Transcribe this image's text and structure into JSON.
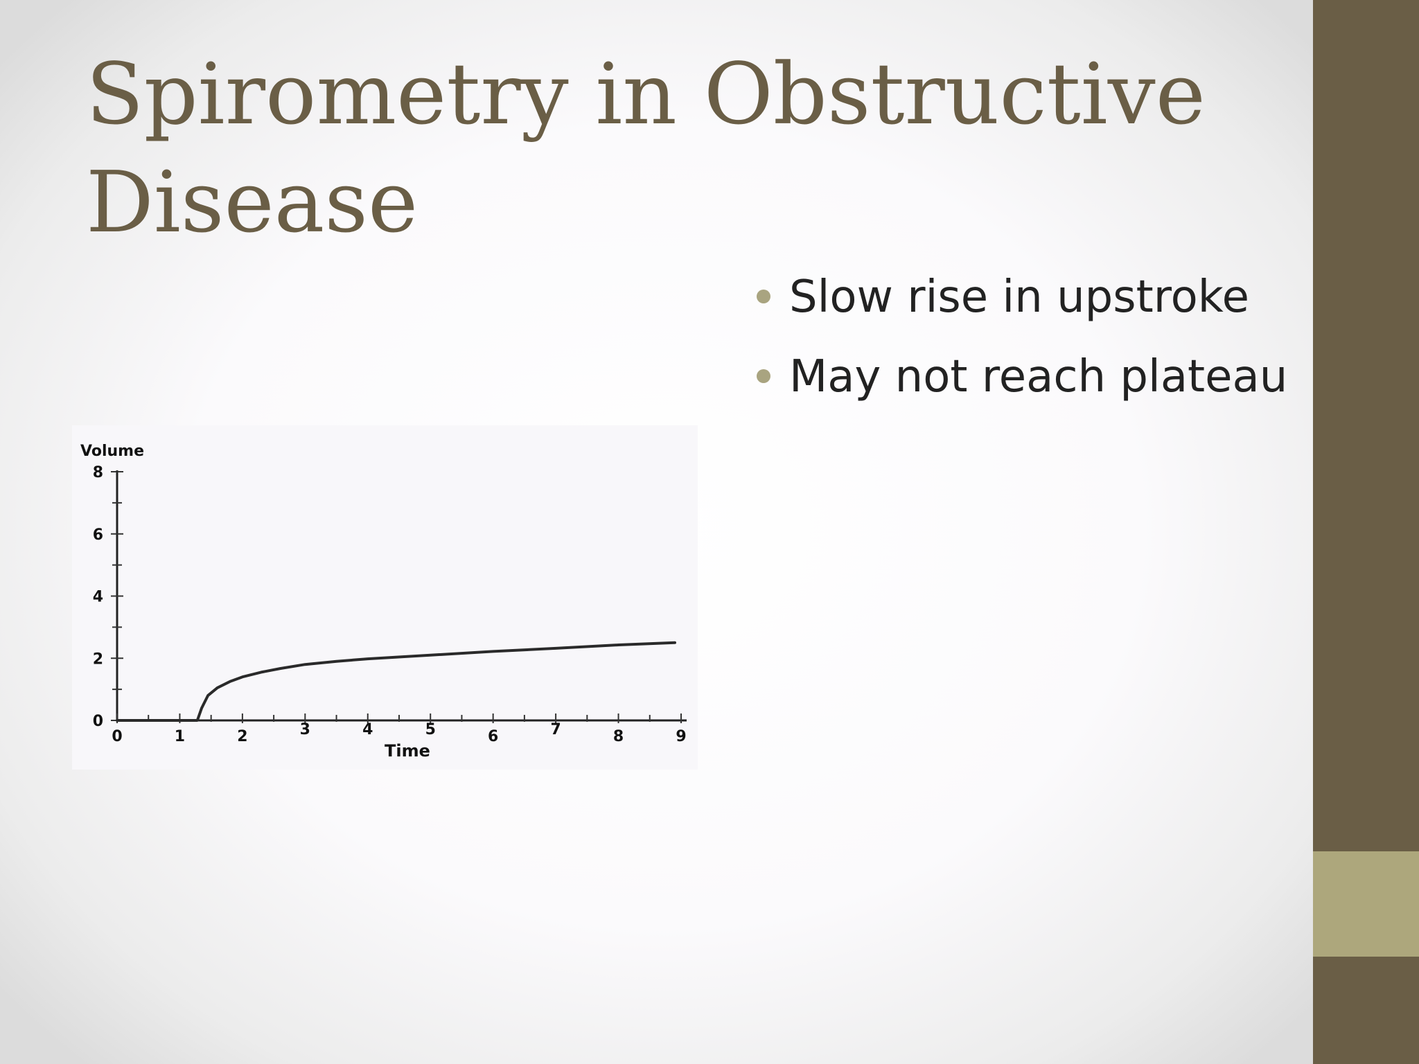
{
  "slide": {
    "title": "Spirometry in Obstructive Disease",
    "bullets": [
      "Slow rise in upstroke",
      "May not reach plateau"
    ]
  },
  "colors": {
    "title": "#6a5e46",
    "side_bar": "#6a5e46",
    "side_accent": "#ada77c",
    "bullet_dot": "#a9a480",
    "body_text": "#222222"
  },
  "chart_data": {
    "type": "line",
    "title": "",
    "xlabel": "Time",
    "ylabel": "Volume",
    "xlim": [
      0,
      9
    ],
    "ylim": [
      0,
      8
    ],
    "x_ticks": [
      0,
      1,
      2,
      3,
      4,
      5,
      6,
      7,
      8,
      9
    ],
    "y_ticks": [
      0,
      2,
      4,
      6,
      8
    ],
    "grid": false,
    "legend": "none",
    "series": [
      {
        "x": [
          0,
          0.5,
          1.0,
          1.28,
          1.35,
          1.45,
          1.6,
          1.8,
          2.0,
          2.3,
          2.6,
          3.0,
          3.5,
          4.0,
          5.0,
          6.0,
          7.0,
          8.0,
          8.9
        ],
        "y": [
          0,
          0,
          0,
          0,
          0.4,
          0.8,
          1.05,
          1.25,
          1.4,
          1.55,
          1.67,
          1.8,
          1.9,
          1.98,
          2.1,
          2.22,
          2.32,
          2.43,
          2.5
        ]
      }
    ]
  }
}
